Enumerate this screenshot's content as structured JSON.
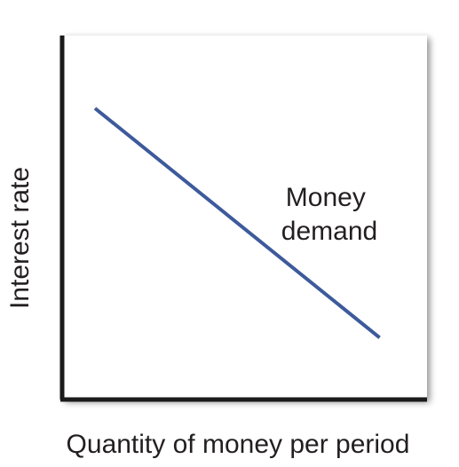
{
  "chart_data": {
    "type": "line",
    "title": "",
    "xlabel": "Quantity of money per period",
    "ylabel": "Interest rate",
    "xlim": [
      0,
      10
    ],
    "ylim": [
      0,
      10
    ],
    "grid": false,
    "legend": "none",
    "series": [
      {
        "name": "Money demand",
        "label_lines": [
          "Money",
          "demand"
        ],
        "color": "#3d5a9b",
        "x": [
          0.9,
          8.7
        ],
        "y": [
          8.0,
          1.7
        ]
      }
    ]
  },
  "colors": {
    "axis": "#1a1a1a",
    "plot_background": "#ffffff",
    "shadow": "#c8c8c8"
  }
}
